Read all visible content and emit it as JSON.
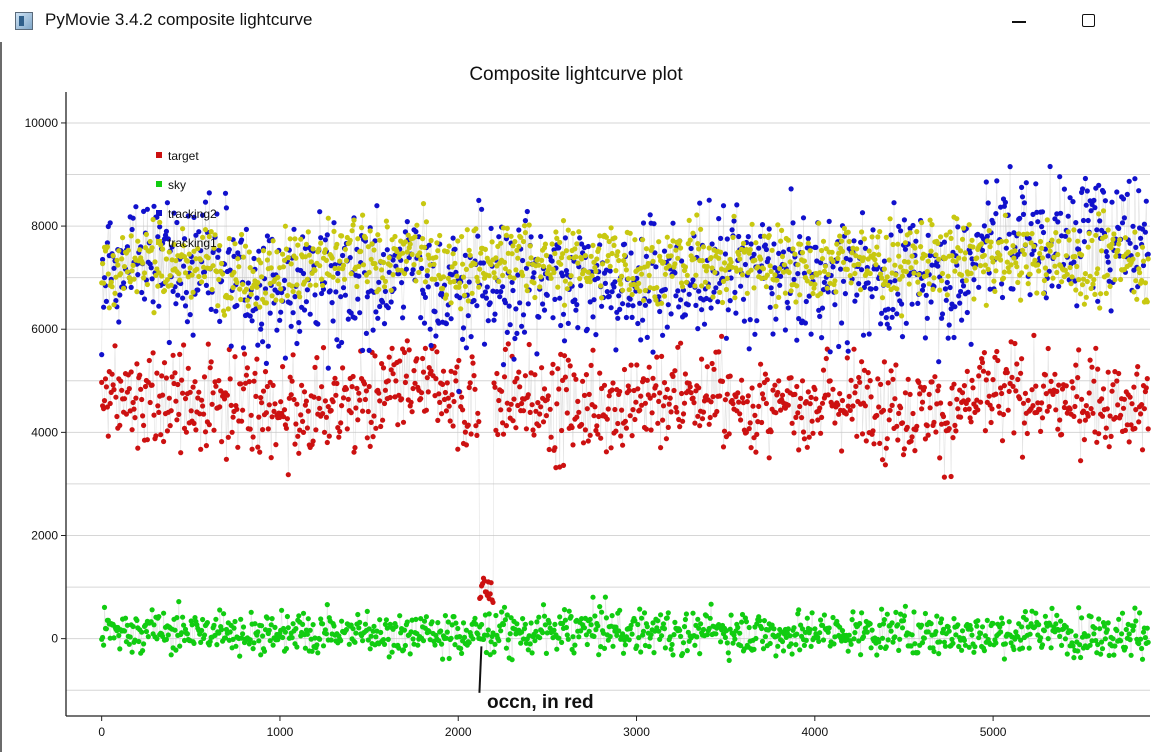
{
  "window": {
    "title": "PyMovie 3.4.2 composite lightcurve",
    "icons": [
      "app-icon",
      "minimize-icon",
      "maximize-icon"
    ]
  },
  "chart_data": {
    "type": "scatter",
    "title": "Composite lightcurve plot",
    "xlim": [
      -200,
      5880
    ],
    "ylim": [
      -1500,
      10600
    ],
    "x_ticks": [
      0,
      1000,
      2000,
      3000,
      4000,
      5000
    ],
    "y_ticks": [
      0,
      2000,
      4000,
      6000,
      8000,
      10000
    ],
    "grid": "horizontal",
    "legend_position": "top-left",
    "series": [
      {
        "name": "target",
        "color": "#cc1111",
        "points": 5870,
        "y_mean": 4600,
        "y_spread": 900,
        "x_start": 0,
        "x_end": 5870
      },
      {
        "name": "sky",
        "color": "#11cc11",
        "points": 5870,
        "y_mean": 150,
        "y_spread": 400,
        "x_start": 0,
        "x_end": 5870
      },
      {
        "name": "tracking2",
        "color": "#1111cc",
        "points": 5870,
        "y_mean": 7000,
        "y_spread": 1200,
        "x_start": 0,
        "x_end": 5870
      },
      {
        "name": "tracking1",
        "color": "#c8c811",
        "points": 5870,
        "y_mean": 7300,
        "y_spread": 700,
        "x_start": 0,
        "x_end": 5870
      }
    ],
    "occultation": {
      "x_start": 2120,
      "x_end": 2200,
      "target_level": 900
    },
    "annotations": [
      {
        "text": "occn, in red",
        "x": 2130,
        "y": -850
      }
    ]
  }
}
